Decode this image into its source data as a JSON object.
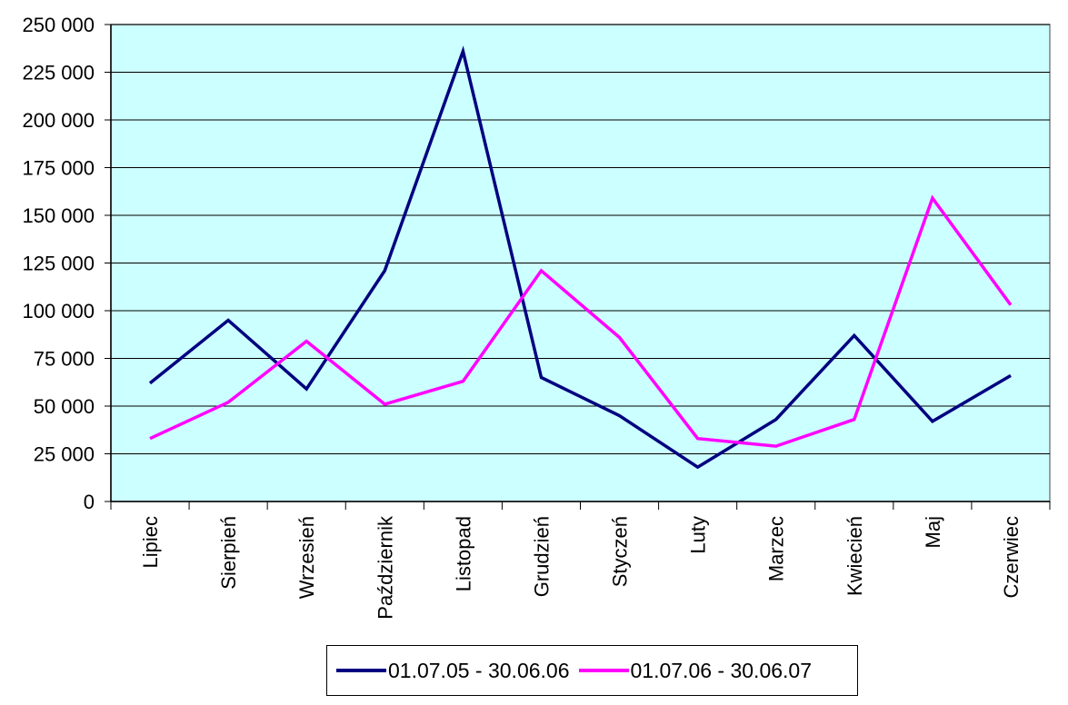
{
  "chart_data": {
    "type": "line",
    "title": "",
    "xlabel": "",
    "ylabel": "",
    "categories": [
      "Lipiec",
      "Sierpień",
      "Wrzesień",
      "Październik",
      "Listopad",
      "Grudzień",
      "Styczeń",
      "Luty",
      "Marzec",
      "Kwiecień",
      "Maj",
      "Czerwiec"
    ],
    "series": [
      {
        "name": "01.07.05 - 30.06.06",
        "color": "#000080",
        "values": [
          62000,
          95000,
          59000,
          121000,
          236000,
          65000,
          45000,
          18000,
          43000,
          87000,
          42000,
          66000
        ]
      },
      {
        "name": "01.07.06 - 30.06.07",
        "color": "#ff00ff",
        "values": [
          33000,
          52000,
          84000,
          51000,
          63000,
          121000,
          86000,
          33000,
          29000,
          43000,
          159000,
          103000
        ]
      }
    ],
    "ylim": [
      0,
      250000
    ],
    "yticks": [
      0,
      25000,
      50000,
      75000,
      100000,
      125000,
      150000,
      175000,
      200000,
      225000,
      250000
    ],
    "ytick_labels": [
      "0",
      "25 000",
      "50 000",
      "75 000",
      "100 000",
      "125 000",
      "150 000",
      "175 000",
      "200 000",
      "225 000",
      "250 000"
    ],
    "grid": true,
    "legend_position": "bottom-center",
    "plot_background": "#ccffff"
  }
}
